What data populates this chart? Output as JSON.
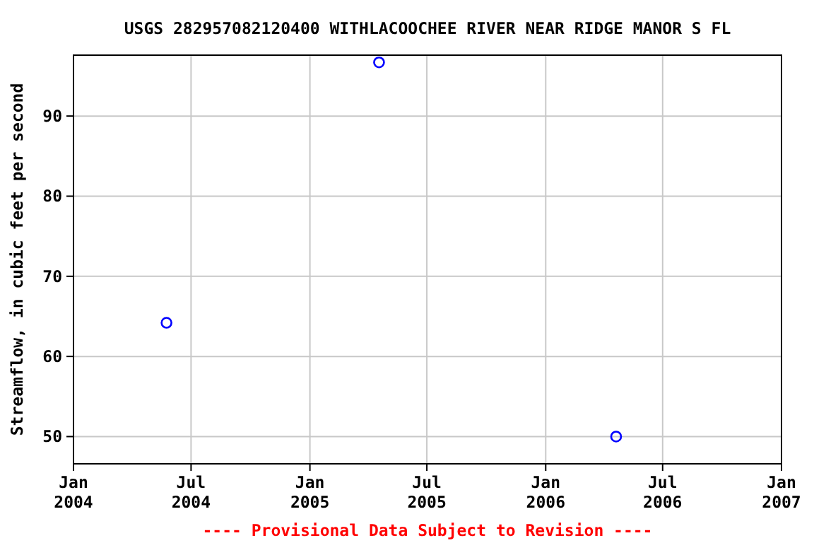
{
  "chart_data": {
    "type": "scatter",
    "title": "USGS 282957082120400 WITHLACOOCHEE RIVER NEAR RIDGE MANOR S FL",
    "ylabel": "Streamflow, in cubic feet per second",
    "x": [
      "2004-05-24",
      "2005-04-18",
      "2006-04-20"
    ],
    "series": [
      {
        "color": "#0000ff",
        "values": [
          64.2,
          96.7,
          50
        ]
      }
    ],
    "marker": "circle",
    "grid": true,
    "xlim": [
      "2004-01-01",
      "2007-01-01"
    ],
    "xticks": [
      {
        "value": "2004-01-01",
        "label": "Jan\n2004"
      },
      {
        "value": "2004-07-01",
        "label": "Jul\n2004"
      },
      {
        "value": "2005-01-01",
        "label": "Jan\n2005"
      },
      {
        "value": "2005-07-01",
        "label": "Jul\n2005"
      },
      {
        "value": "2006-01-01",
        "label": "Jan\n2006"
      },
      {
        "value": "2006-07-01",
        "label": "Jul\n2006"
      },
      {
        "value": "2007-01-01",
        "label": "Jan\n2007"
      }
    ],
    "ylim": [
      46.6,
      97.6
    ],
    "yticks": [
      50,
      60,
      70,
      80,
      90
    ],
    "annotations": [
      "---- Provisional Data Subject to Revision ----"
    ]
  }
}
